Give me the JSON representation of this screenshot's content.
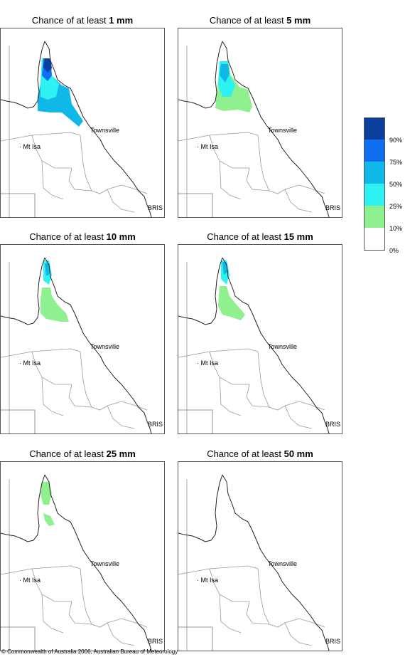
{
  "panels": [
    {
      "title_prefix": "Chance of at least ",
      "amount": "1 mm"
    },
    {
      "title_prefix": "Chance of at least ",
      "amount": "5 mm"
    },
    {
      "title_prefix": "Chance of at least ",
      "amount": "10 mm"
    },
    {
      "title_prefix": "Chance of at least ",
      "amount": "15 mm"
    },
    {
      "title_prefix": "Chance of at least ",
      "amount": "25 mm"
    },
    {
      "title_prefix": "Chance of at least ",
      "amount": "50 mm"
    }
  ],
  "places": {
    "townsville": "Townsville",
    "mt_isa": "Mt Isa",
    "brisbane": "BRIS"
  },
  "legend": {
    "ticks": [
      "90%",
      "75%",
      "50%",
      "25%",
      "10%",
      "0%"
    ],
    "colors": [
      "#0b3f9e",
      "#0f6ff0",
      "#10b8e8",
      "#2ef2f2",
      "#8ef08e",
      "#ffffff"
    ]
  },
  "copyright": "© Commonwealth of Australia 2006, Australian Bureau of Meteorology"
}
